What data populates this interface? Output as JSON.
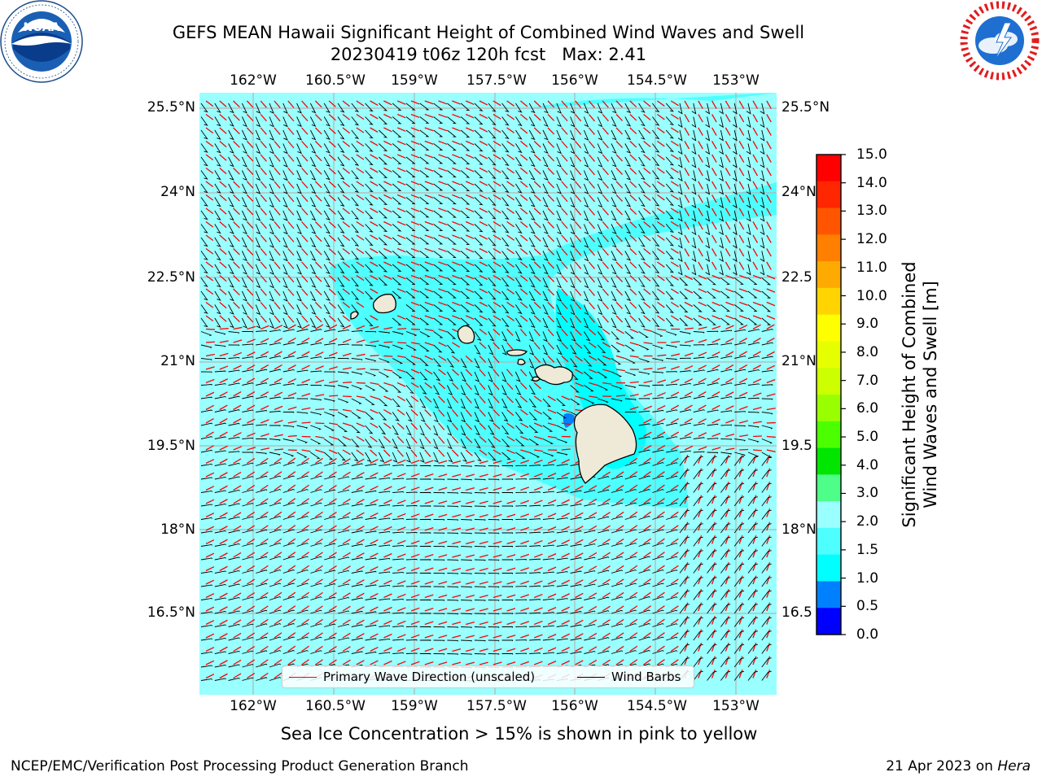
{
  "header": {
    "title_line1": "GEFS MEAN Hawaii Significant Height of Combined Wind Waves and Swell",
    "title_line2": "20230419 t06z 120h fcst   Max: 2.41"
  },
  "logos": {
    "left": "noaa-logo",
    "right": "nws-logo"
  },
  "map": {
    "lon_ticks": [
      "162°W",
      "160.5°W",
      "159°W",
      "157.5°W",
      "156°W",
      "154.5°W",
      "153°W"
    ],
    "lat_ticks_left": [
      "25.5°N",
      "24°N",
      "22.5°N",
      "21°N",
      "19.5°N",
      "18°N",
      "16.5°N"
    ],
    "lat_ticks_right": [
      "25.5°N",
      "24°N",
      "22.5",
      "21°N",
      "19.5",
      "18°N",
      "16.5"
    ],
    "ocean_color": "#99ffff",
    "higher_wave_color": "#4dffff",
    "land_color": "#efead7",
    "wave_arrow_color": "#ff0000",
    "wind_barb_color": "#000000"
  },
  "legend": {
    "wave_direction": "Primary Wave Direction (unscaled)",
    "wind_barbs": "Wind Barbs"
  },
  "colorbar": {
    "title_line1": "Significant Height of Combined",
    "title_line2": "Wind Waves and Swell [m]",
    "tick_labels": [
      "15.0",
      "14.0",
      "13.0",
      "12.0",
      "11.0",
      "10.0",
      "9.0",
      "8.0",
      "7.0",
      "6.0",
      "5.0",
      "4.0",
      "3.0",
      "2.0",
      "1.5",
      "1.0",
      "0.5",
      "0.0"
    ],
    "colors_top_to_bottom": [
      "#ff0000",
      "#ff2600",
      "#ff5500",
      "#ff7f00",
      "#ffaa00",
      "#ffd400",
      "#ffff00",
      "#e6ff00",
      "#ccff00",
      "#99ff00",
      "#4cff00",
      "#00e600",
      "#4dff88",
      "#99ffff",
      "#4dffff",
      "#00ffff",
      "#0080ff",
      "#0000ff"
    ]
  },
  "footer": {
    "note": "Sea Ice Concentration > 15% is shown in pink to yellow",
    "left": "NCEP/EMC/Verification Post Processing Product Generation Branch",
    "right_prefix": "21 Apr 2023 on ",
    "right_host": "Hera"
  }
}
